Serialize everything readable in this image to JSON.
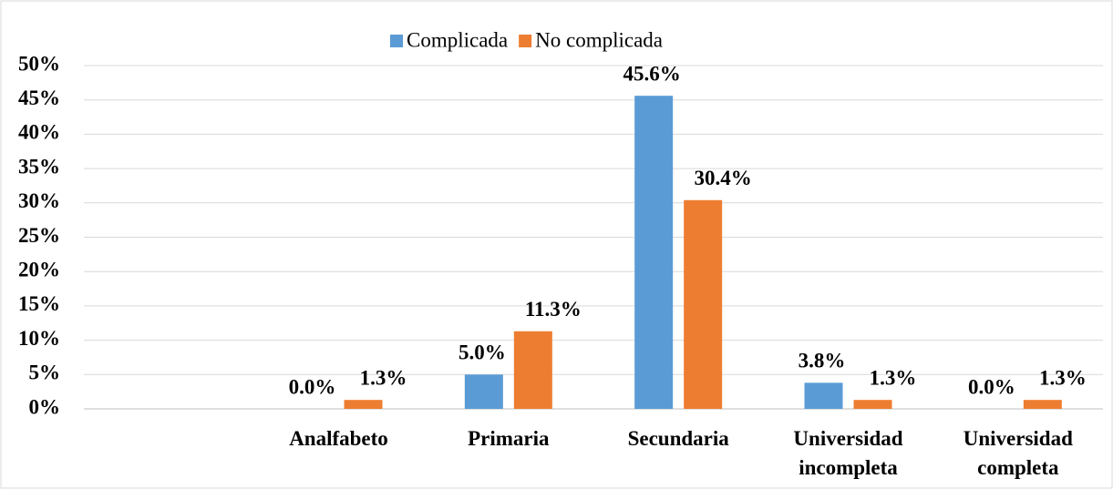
{
  "chart_data": {
    "type": "bar",
    "categories": [
      null,
      "Analfabeto",
      "Primaria",
      "Secundaria",
      "Universidad incompleta",
      "Universidad completa"
    ],
    "series": [
      {
        "name": "Complicada",
        "color": "#5b9bd5",
        "values": [
          null,
          0.0,
          5.0,
          45.6,
          3.8,
          0.0
        ],
        "value_labels": [
          null,
          "0.0%",
          "5.0%",
          "45.6%",
          "3.8%",
          "0.0%"
        ]
      },
      {
        "name": "No complicada",
        "color": "#ed7d31",
        "values": [
          null,
          1.3,
          11.3,
          30.4,
          1.3,
          1.3
        ],
        "value_labels": [
          null,
          "1.3%",
          "11.3%",
          "30.4%",
          "1.3%",
          "1.3%"
        ]
      }
    ],
    "ylim": [
      0,
      50
    ],
    "yticks": [
      {
        "value": 0,
        "label": "0%"
      },
      {
        "value": 5,
        "label": "5%"
      },
      {
        "value": 10,
        "label": "10%"
      },
      {
        "value": 15,
        "label": "15%"
      },
      {
        "value": 20,
        "label": "20%"
      },
      {
        "value": 25,
        "label": "25%"
      },
      {
        "value": 30,
        "label": "30%"
      },
      {
        "value": 35,
        "label": "35%"
      },
      {
        "value": 40,
        "label": "40%"
      },
      {
        "value": 45,
        "label": "45%"
      },
      {
        "value": 50,
        "label": "50%"
      }
    ],
    "grid": true,
    "legend": "top"
  }
}
